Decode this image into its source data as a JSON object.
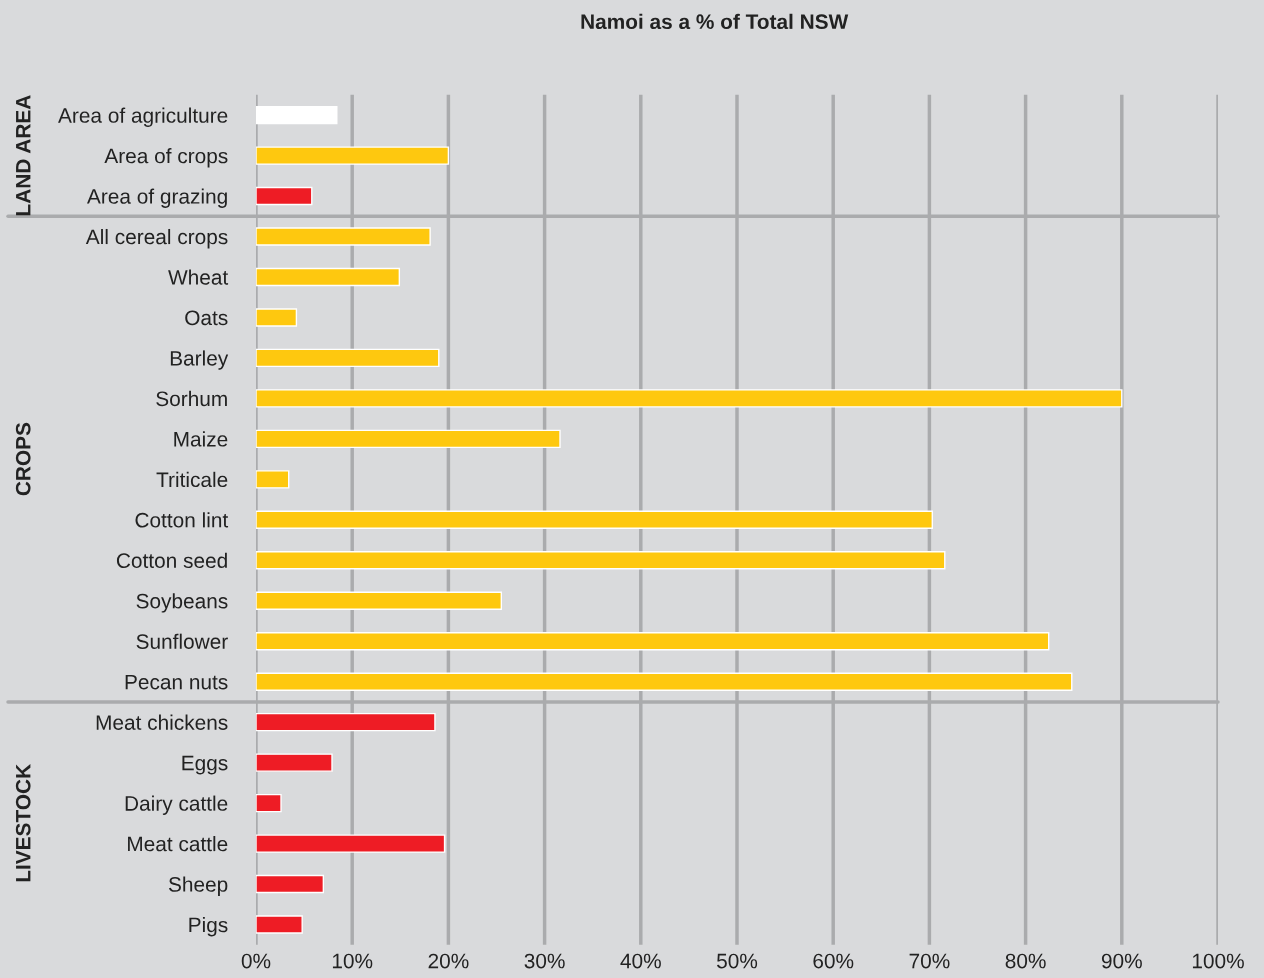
{
  "chart_data": {
    "type": "bar",
    "orientation": "horizontal",
    "title": "Namoi as a % of Total NSW",
    "categories": [
      "Area of agriculture",
      "Area of crops",
      "Area of grazing",
      "All cereal crops",
      "Wheat",
      "Oats",
      "Barley",
      "Sorhum",
      "Maize",
      "Triticale",
      "Cotton lint",
      "Cotton seed",
      "Soybeans",
      "Sunflower",
      "Pecan nuts",
      "Meat chickens",
      "Eggs",
      "Dairy cattle",
      "Meat cattle",
      "Sheep",
      "Pigs"
    ],
    "values": [
      8.4,
      20,
      5.8,
      18.1,
      14.9,
      4.2,
      19,
      90,
      31.6,
      3.4,
      70.3,
      71.6,
      25.5,
      82.4,
      84.8,
      18.6,
      7.9,
      2.6,
      19.6,
      7,
      4.8
    ],
    "colors": [
      "#ffffff",
      "#fec80f",
      "#ee1c25",
      "#fec80f",
      "#fec80f",
      "#fec80f",
      "#fec80f",
      "#fec80f",
      "#fec80f",
      "#fec80f",
      "#fec80f",
      "#fec80f",
      "#fec80f",
      "#fec80f",
      "#fec80f",
      "#ee1c25",
      "#ee1c25",
      "#ee1c25",
      "#ee1c25",
      "#ee1c25",
      "#ee1c25"
    ],
    "xlim": [
      0,
      100
    ],
    "xticks": [
      {
        "value": 0,
        "label": "0%"
      },
      {
        "value": 10,
        "label": "10%"
      },
      {
        "value": 20,
        "label": "20%"
      },
      {
        "value": 30,
        "label": "30%"
      },
      {
        "value": 40,
        "label": "40%"
      },
      {
        "value": 50,
        "label": "50%"
      },
      {
        "value": 60,
        "label": "60%"
      },
      {
        "value": 70,
        "label": "70%"
      },
      {
        "value": 80,
        "label": "80%"
      },
      {
        "value": 90,
        "label": "90%"
      },
      {
        "value": 100,
        "label": "100%"
      }
    ],
    "grid": "x",
    "annotations": [
      "LAND AREA",
      "CROPS",
      "LIVESTOCK"
    ]
  }
}
